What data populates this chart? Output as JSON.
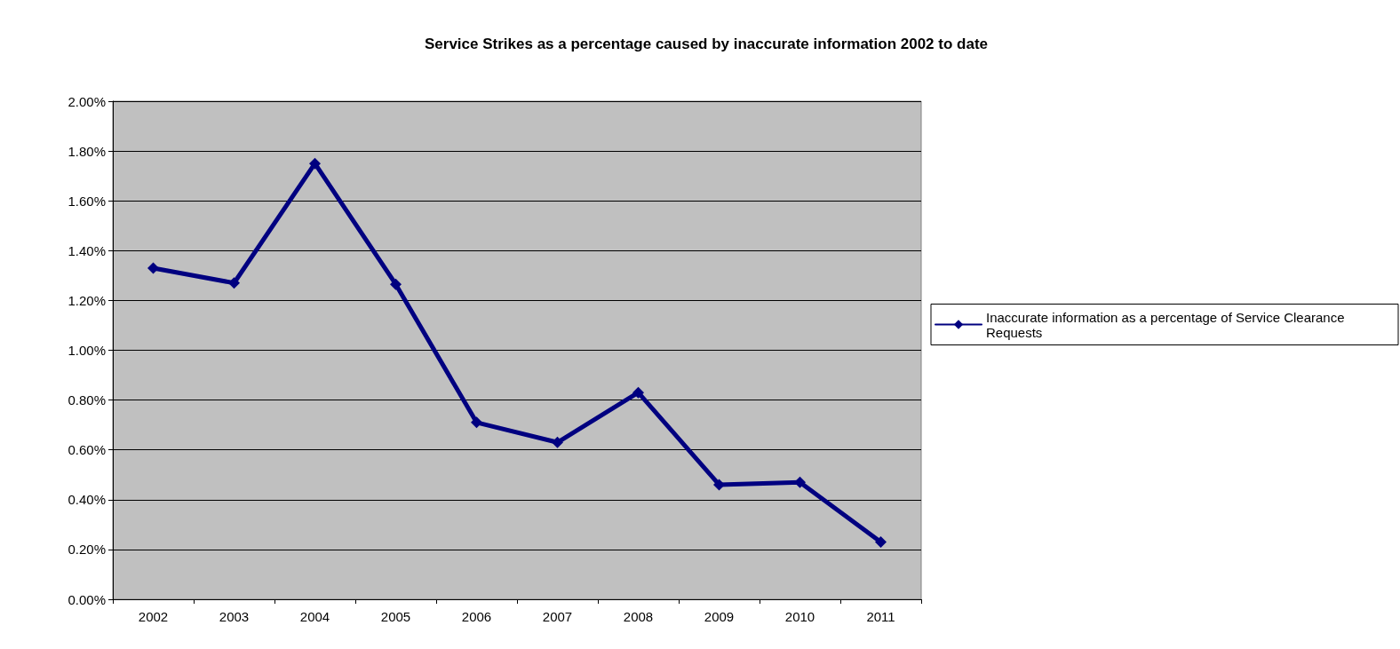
{
  "chart_data": {
    "type": "line",
    "title": "Service Strikes as a percentage caused by inaccurate information 2002 to date",
    "categories": [
      "2002",
      "2003",
      "2004",
      "2005",
      "2006",
      "2007",
      "2008",
      "2009",
      "2010",
      "2011"
    ],
    "series": [
      {
        "name": "Inaccurate information as a percentage of Service Clearance Requests",
        "color": "#000080",
        "values": [
          1.33,
          1.27,
          1.75,
          1.265,
          0.71,
          0.63,
          0.83,
          0.46,
          0.47,
          0.23
        ]
      }
    ],
    "ylim": [
      0,
      2
    ],
    "yticks": [
      {
        "value": 0,
        "label": "0.00%"
      },
      {
        "value": 0.2,
        "label": "0.20%"
      },
      {
        "value": 0.4,
        "label": "0.40%"
      },
      {
        "value": 0.6,
        "label": "0.60%"
      },
      {
        "value": 0.8,
        "label": "0.80%"
      },
      {
        "value": 1,
        "label": "1.00%"
      },
      {
        "value": 1.2,
        "label": "1.20%"
      },
      {
        "value": 1.4,
        "label": "1.40%"
      },
      {
        "value": 1.6,
        "label": "1.60%"
      },
      {
        "value": 1.8,
        "label": "1.80%"
      },
      {
        "value": 2,
        "label": "2.00%"
      }
    ],
    "grid": "y",
    "legend": "right",
    "marker": "diamond",
    "line_style": "solid"
  }
}
